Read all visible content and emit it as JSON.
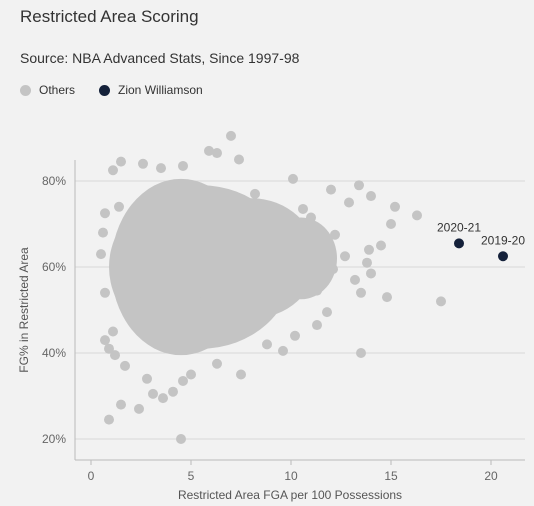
{
  "title": "Restricted Area Scoring",
  "subtitle": "Source: NBA Advanced Stats, Since 1997-98",
  "colors": {
    "others": "#c4c4c4",
    "highlight": "#14213a",
    "grid": "#d8d8d8",
    "background": "#f2f2f2"
  },
  "chart_data": {
    "type": "scatter",
    "xlabel": "Restricted Area FGA per 100 Possessions",
    "ylabel": "FG% in Restricted Area",
    "xlim": [
      0,
      21.5
    ],
    "ylim": [
      20,
      90
    ],
    "x_ticks": [
      0,
      5,
      10,
      15,
      20
    ],
    "y_ticks": [
      20,
      40,
      60,
      80
    ],
    "y_tick_labels": [
      "20%",
      "40%",
      "60%",
      "80%"
    ],
    "grid": "horizontal",
    "legend_position": "top-left",
    "legend": [
      "Others",
      "Zion Williamson"
    ],
    "series": [
      {
        "name": "Others",
        "color": "#c4c4c4",
        "points": [
          [
            4.5,
            20.0
          ],
          [
            0.9,
            24.5
          ],
          [
            1.5,
            28.0
          ],
          [
            2.4,
            27.0
          ],
          [
            3.1,
            30.5
          ],
          [
            3.6,
            29.5
          ],
          [
            4.1,
            31.0
          ],
          [
            5.0,
            35.0
          ],
          [
            2.8,
            34.0
          ],
          [
            4.6,
            33.5
          ],
          [
            7.5,
            35.0
          ],
          [
            13.5,
            40.0
          ],
          [
            17.5,
            52.0
          ],
          [
            14.8,
            53.0
          ],
          [
            11.3,
            54.5
          ],
          [
            13.5,
            54.0
          ],
          [
            15.0,
            70.0
          ],
          [
            16.3,
            72.0
          ],
          [
            15.2,
            74.0
          ],
          [
            14.0,
            76.5
          ],
          [
            13.4,
            79.0
          ],
          [
            10.1,
            80.5
          ],
          [
            7.0,
            90.5
          ],
          [
            5.9,
            87.0
          ],
          [
            6.3,
            86.5
          ],
          [
            1.5,
            84.5
          ],
          [
            1.1,
            82.5
          ],
          [
            2.6,
            84.0
          ],
          [
            3.5,
            83.0
          ],
          [
            4.6,
            83.5
          ],
          [
            7.4,
            85.0
          ],
          [
            12.0,
            78.0
          ],
          [
            12.9,
            75.0
          ],
          [
            14.5,
            65.0
          ],
          [
            13.9,
            64.0
          ],
          [
            13.8,
            61.0
          ],
          [
            14.0,
            58.5
          ],
          [
            13.2,
            57.0
          ],
          [
            12.1,
            59.5
          ],
          [
            12.7,
            62.5
          ],
          [
            0.7,
            43.0
          ],
          [
            0.9,
            41.0
          ],
          [
            1.2,
            39.5
          ],
          [
            1.7,
            37.0
          ],
          [
            1.1,
            45.0
          ],
          [
            0.6,
            68.0
          ],
          [
            0.5,
            63.0
          ],
          [
            0.7,
            54.0
          ],
          [
            0.7,
            72.5
          ],
          [
            1.4,
            74.0
          ],
          [
            8.8,
            42.0
          ],
          [
            10.2,
            44.0
          ],
          [
            11.3,
            46.5
          ],
          [
            9.6,
            40.5
          ],
          [
            6.3,
            37.5
          ],
          [
            11.8,
            49.5
          ],
          [
            12.2,
            67.5
          ],
          [
            11.0,
            71.5
          ],
          [
            10.6,
            73.5
          ],
          [
            8.2,
            77.0
          ]
        ],
        "blobs": [
          {
            "cx": 5.5,
            "cy": 60.0,
            "rx": 4.6,
            "ry": 19.0
          },
          {
            "cx": 4.5,
            "cy": 60.0,
            "rx": 3.5,
            "ry": 20.5
          },
          {
            "cx": 8.0,
            "cy": 62.0,
            "rx": 3.3,
            "ry": 14.0
          },
          {
            "cx": 10.5,
            "cy": 62.0,
            "rx": 1.8,
            "ry": 9.5
          }
        ]
      },
      {
        "name": "Zion Williamson",
        "color": "#14213a",
        "points": [
          {
            "x": 18.4,
            "y": 65.5,
            "label": "2020-21"
          },
          {
            "x": 20.6,
            "y": 62.5,
            "label": "2019-20"
          }
        ]
      }
    ]
  }
}
